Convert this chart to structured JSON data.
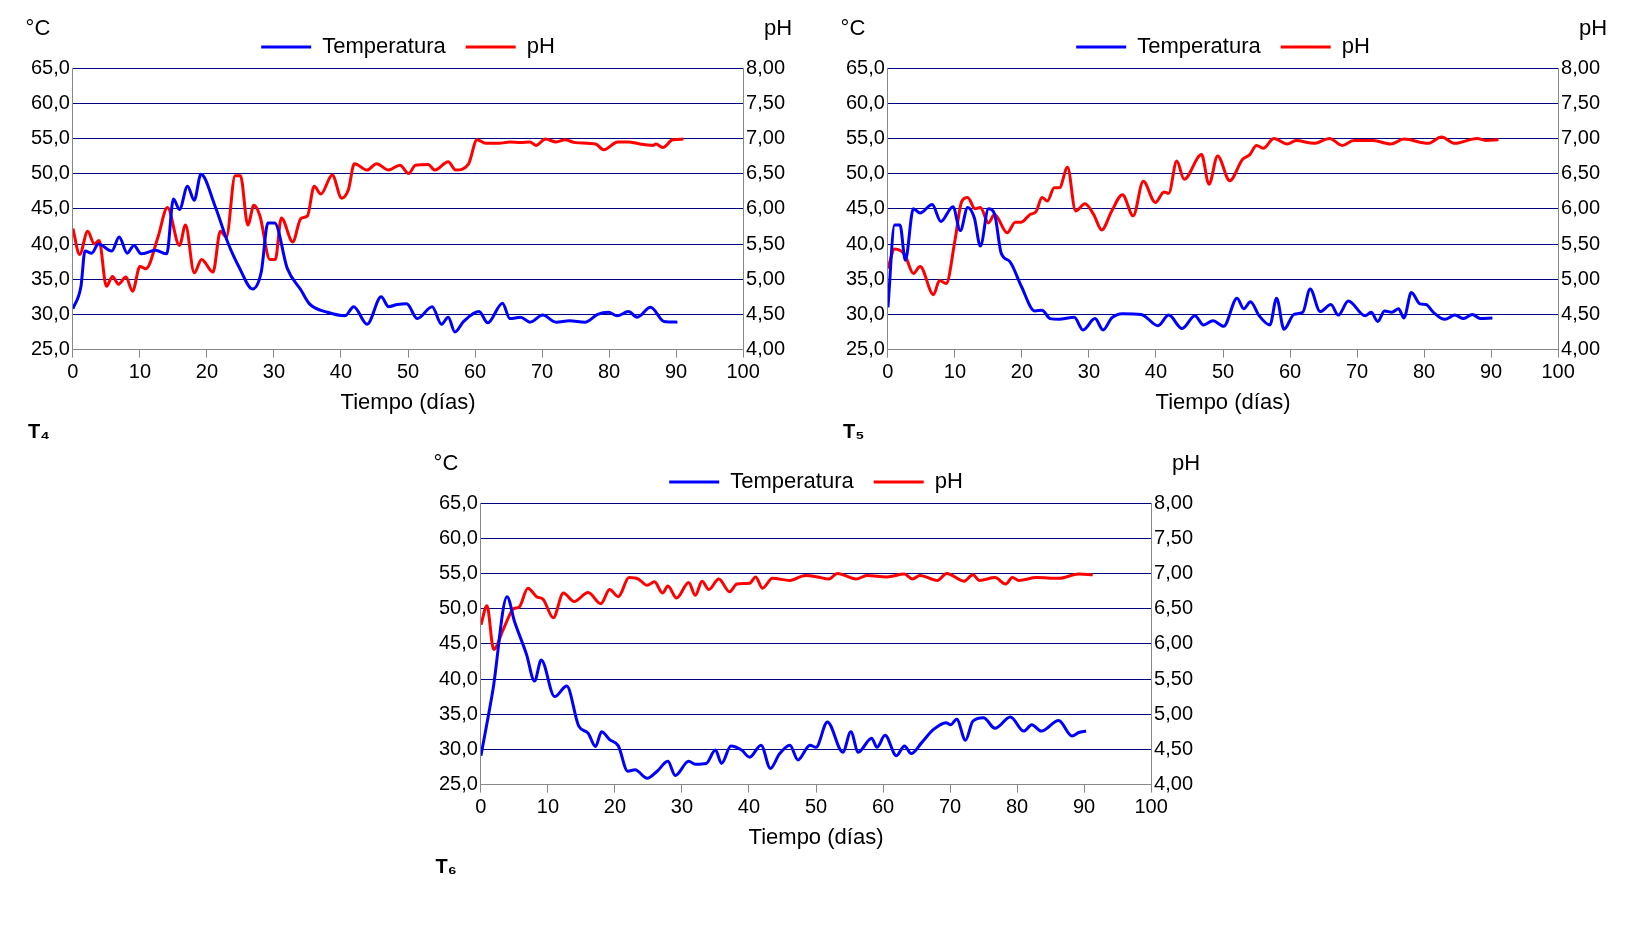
{
  "chart_data": [
    {
      "type": "line",
      "xlabel": "Tiempo (días)",
      "ylabel": "°C",
      "y2label": "pH",
      "annotations": [
        "T₄"
      ],
      "legend": "top",
      "grid": "y",
      "xlim": [
        0,
        100
      ],
      "xticks": [
        0,
        10,
        20,
        30,
        40,
        50,
        60,
        70,
        80,
        90,
        100
      ],
      "ylim": [
        25,
        65
      ],
      "yticks": [
        {
          "value": 25,
          "label": "25,0"
        },
        {
          "value": 30,
          "label": "30,0"
        },
        {
          "value": 35,
          "label": "35,0"
        },
        {
          "value": 40,
          "label": "40,0"
        },
        {
          "value": 45,
          "label": "45,0"
        },
        {
          "value": 50,
          "label": "50,0"
        },
        {
          "value": 55,
          "label": "55,0"
        },
        {
          "value": 60,
          "label": "60,0"
        },
        {
          "value": 65,
          "label": "65,0"
        }
      ],
      "y2lim": [
        4,
        8
      ],
      "y2ticks": [
        {
          "value": 4,
          "label": "4,00"
        },
        {
          "value": 4.5,
          "label": "4,50"
        },
        {
          "value": 5,
          "label": "5,00"
        },
        {
          "value": 5.5,
          "label": "5,50"
        },
        {
          "value": 6,
          "label": "6,00"
        },
        {
          "value": 6.5,
          "label": "6,50"
        },
        {
          "value": 7,
          "label": "7,00"
        },
        {
          "value": 7.5,
          "label": "7,50"
        },
        {
          "value": 8,
          "label": "8,00"
        }
      ],
      "series": [
        {
          "name": "Temperatura",
          "color": "#0000ff",
          "x": [
            0,
            1.2,
            1.8,
            2.8,
            3.8,
            5.8,
            6.9,
            8.1,
            9.1,
            10.2,
            12.3,
            14,
            15,
            15.9,
            17.1,
            18.1,
            19.1,
            21.2,
            23.2,
            24.8,
            26.8,
            28.1,
            29.1,
            30.1,
            32,
            34,
            35.3,
            38,
            40.6,
            41.9,
            43.9,
            46,
            47.1,
            48.4,
            49.8,
            51.4,
            53.6,
            55,
            56,
            57,
            58.3,
            60.6,
            61.9,
            64.1,
            65.2,
            66.8,
            68.2,
            70.1,
            72.1,
            74.1,
            76.4,
            78.3,
            79.9,
            81.2,
            82.9,
            84.2,
            86.2,
            88.2,
            90.2
          ],
          "values": [
            30.8,
            34,
            39,
            38.7,
            40,
            39,
            41,
            38.7,
            39.8,
            38.6,
            39.1,
            38.6,
            46.4,
            44.9,
            48.2,
            46.2,
            49.9,
            45.4,
            40,
            36.7,
            33.6,
            36,
            43,
            43,
            36.5,
            33.5,
            31.5,
            30.3,
            29.8,
            31.1,
            28.6,
            32.5,
            31.1,
            31.4,
            31.5,
            29.4,
            31.1,
            28.6,
            29.6,
            27.5,
            29,
            30.4,
            28.8,
            31.6,
            29.4,
            29.6,
            28.9,
            29.9,
            28.9,
            29.1,
            28.9,
            30,
            30.3,
            29.8,
            30.4,
            29.6,
            31,
            29,
            28.9
          ]
        },
        {
          "name": "pH",
          "color": "#ff0000",
          "axis": "y2",
          "x": [
            0,
            1,
            2.2,
            3.2,
            3.9,
            5,
            5.9,
            6.8,
            7.9,
            8.9,
            10,
            10.9,
            12.7,
            14.1,
            15.9,
            16.8,
            18.1,
            19.2,
            20.9,
            22,
            22.9,
            24.2,
            25,
            26.1,
            27,
            27.9,
            29.4,
            30.2,
            31.1,
            32.8,
            34,
            35,
            36,
            37,
            38.7,
            40.1,
            41.1,
            42,
            43.9,
            45.3,
            47.1,
            48.8,
            50.1,
            51.1,
            53,
            54,
            56,
            57.1,
            59,
            60.3,
            61.6,
            63.6,
            65.2,
            66.8,
            68.2,
            69.1,
            70.5,
            72.1,
            73.4,
            75,
            78,
            79.2,
            81.3,
            82.9,
            84.6,
            86.5,
            87,
            88,
            89.5,
            91.1
          ],
          "values": [
            5.72,
            5.35,
            5.68,
            5.5,
            5.55,
            4.9,
            5.04,
            4.93,
            5.03,
            4.83,
            5.18,
            5.15,
            5.6,
            6.02,
            5.48,
            5.77,
            5.09,
            5.28,
            5.1,
            5.68,
            5.6,
            6.47,
            6.47,
            5.77,
            6.05,
            5.9,
            5.28,
            5.28,
            5.87,
            5.53,
            5.86,
            5.9,
            6.32,
            6.21,
            6.48,
            6.15,
            6.27,
            6.64,
            6.55,
            6.64,
            6.55,
            6.62,
            6.5,
            6.62,
            6.63,
            6.55,
            6.67,
            6.55,
            6.63,
            6.98,
            6.93,
            6.93,
            6.95,
            6.94,
            6.95,
            6.9,
            6.99,
            6.95,
            6.98,
            6.94,
            6.92,
            6.84,
            6.95,
            6.95,
            6.92,
            6.9,
            6.92,
            6.87,
            6.98,
            6.99
          ]
        }
      ]
    },
    {
      "type": "line",
      "xlabel": "Tiempo (días)",
      "ylabel": "°C",
      "y2label": "pH",
      "annotations": [
        "T₅"
      ],
      "legend": "top",
      "grid": "y",
      "xlim": [
        0,
        100
      ],
      "xticks": [
        0,
        10,
        20,
        30,
        40,
        50,
        60,
        70,
        80,
        90,
        100
      ],
      "ylim": [
        25,
        65
      ],
      "yticks": [
        {
          "value": 25,
          "label": "25,0"
        },
        {
          "value": 30,
          "label": "30,0"
        },
        {
          "value": 35,
          "label": "35,0"
        },
        {
          "value": 40,
          "label": "40,0"
        },
        {
          "value": 45,
          "label": "45,0"
        },
        {
          "value": 50,
          "label": "50,0"
        },
        {
          "value": 55,
          "label": "55,0"
        },
        {
          "value": 60,
          "label": "60,0"
        },
        {
          "value": 65,
          "label": "65,0"
        }
      ],
      "y2lim": [
        4,
        8
      ],
      "y2ticks": [
        {
          "value": 4,
          "label": "4,00"
        },
        {
          "value": 4.5,
          "label": "4,50"
        },
        {
          "value": 5,
          "label": "5,00"
        },
        {
          "value": 5.5,
          "label": "5,50"
        },
        {
          "value": 6,
          "label": "6,00"
        },
        {
          "value": 6.5,
          "label": "6,50"
        },
        {
          "value": 7,
          "label": "7,00"
        },
        {
          "value": 7.5,
          "label": "7,50"
        },
        {
          "value": 8,
          "label": "8,00"
        }
      ],
      "series": [
        {
          "name": "Temperatura",
          "color": "#0000ff",
          "x": [
            0,
            1,
            1.8,
            2.6,
            3.8,
            4.8,
            6.6,
            7.9,
            9.7,
            10.8,
            11.9,
            12.9,
            13.8,
            15,
            15.9,
            16.9,
            18.2,
            19.9,
            21.9,
            23,
            24.2,
            25.5,
            27.8,
            29.1,
            30.9,
            32.1,
            33.4,
            35,
            37.8,
            40.3,
            41.9,
            43.9,
            45.8,
            47.1,
            48.5,
            50.1,
            52.1,
            53.1,
            54.1,
            55.4,
            57,
            58,
            59.1,
            60.6,
            61.9,
            63,
            64.5,
            66.1,
            67.2,
            68.7,
            71.2,
            72.1,
            73.1,
            74.1,
            75.2,
            76.2,
            77,
            78.1,
            79.4,
            80.3,
            81.4,
            83.1,
            84.6,
            85.9,
            87.2,
            88.4,
            90.2
          ],
          "values": [
            31,
            42.7,
            42.7,
            37.7,
            45,
            44.4,
            45.6,
            43.2,
            45.3,
            41.9,
            45.2,
            43.7,
            39.7,
            45,
            44.3,
            38.7,
            37.5,
            34,
            30.5,
            30.6,
            29.4,
            29.3,
            29.6,
            27.8,
            29.4,
            27.8,
            29.5,
            30.1,
            30,
            28.4,
            29.9,
            28,
            29.8,
            28.5,
            29.1,
            28.3,
            32.3,
            30.8,
            31.8,
            29.8,
            28.5,
            32.3,
            27.9,
            30,
            30.3,
            33.6,
            30.4,
            31.4,
            29.9,
            31.9,
            29.8,
            30.3,
            29,
            30.5,
            30.3,
            30.8,
            29.5,
            33.1,
            31.5,
            31.4,
            30.3,
            29.3,
            29.9,
            29.4,
            30,
            29.4,
            29.5
          ]
        },
        {
          "name": "pH",
          "color": "#ff0000",
          "axis": "y2",
          "x": [
            0,
            1,
            2.5,
            3.8,
            4.8,
            6.8,
            7.7,
            8.7,
            10,
            11,
            11.9,
            13,
            13.8,
            15,
            15.9,
            17.8,
            19,
            19.9,
            21.2,
            22.1,
            23,
            23.8,
            24.8,
            25.6,
            26.8,
            28,
            29.4,
            30.7,
            31.9,
            33.4,
            35,
            36.6,
            38.1,
            39.9,
            41.2,
            41.9,
            43.1,
            44.2,
            46.8,
            47.9,
            49.2,
            51,
            52.9,
            54,
            55,
            56,
            57.6,
            59.6,
            60.9,
            63.6,
            65.9,
            67.8,
            69.5,
            72.4,
            75,
            77,
            80.6,
            82.6,
            84.6,
            87.9,
            89.2,
            91.1
          ],
          "values": [
            5.15,
            5.43,
            5.35,
            5.08,
            5.18,
            4.78,
            4.98,
            4.94,
            5.55,
            6.1,
            6.16,
            6,
            6.02,
            5.8,
            5.92,
            5.66,
            5.81,
            5.81,
            5.92,
            5.96,
            6.16,
            6.11,
            6.3,
            6.3,
            6.59,
            5.97,
            6.07,
            5.92,
            5.7,
            5.97,
            6.2,
            5.9,
            6.39,
            6.09,
            6.24,
            6.22,
            6.68,
            6.42,
            6.77,
            6.35,
            6.75,
            6.4,
            6.7,
            6.77,
            6.9,
            6.86,
            7,
            6.92,
            6.97,
            6.93,
            7,
            6.9,
            6.97,
            6.97,
            6.92,
            6.99,
            6.93,
            7.02,
            6.93,
            7,
            6.97,
            6.98
          ]
        }
      ]
    },
    {
      "type": "line",
      "xlabel": "Tiempo (días)",
      "ylabel": "°C",
      "y2label": "pH",
      "annotations": [
        "T₆"
      ],
      "legend": "top",
      "grid": "y",
      "xlim": [
        0,
        100
      ],
      "xticks": [
        0,
        10,
        20,
        30,
        40,
        50,
        60,
        70,
        80,
        90,
        100
      ],
      "ylim": [
        25,
        65
      ],
      "yticks": [
        {
          "value": 25,
          "label": "25,0"
        },
        {
          "value": 30,
          "label": "30,0"
        },
        {
          "value": 35,
          "label": "35,0"
        },
        {
          "value": 40,
          "label": "40,0"
        },
        {
          "value": 45,
          "label": "45,0"
        },
        {
          "value": 50,
          "label": "50,0"
        },
        {
          "value": 55,
          "label": "55,0"
        },
        {
          "value": 60,
          "label": "60,0"
        },
        {
          "value": 65,
          "label": "65,0"
        }
      ],
      "y2lim": [
        4,
        8
      ],
      "y2ticks": [
        {
          "value": 4,
          "label": "4,00"
        },
        {
          "value": 4.5,
          "label": "4,50"
        },
        {
          "value": 5,
          "label": "5,00"
        },
        {
          "value": 5.5,
          "label": "5,50"
        },
        {
          "value": 6,
          "label": "6,00"
        },
        {
          "value": 6.5,
          "label": "6,50"
        },
        {
          "value": 7,
          "label": "7,00"
        },
        {
          "value": 7.5,
          "label": "7,50"
        },
        {
          "value": 8,
          "label": "8,00"
        }
      ],
      "series": [
        {
          "name": "Temperatura",
          "color": "#0000ff",
          "x": [
            0,
            1.8,
            3.9,
            5,
            6.8,
            8,
            9,
            11,
            12.8,
            14.6,
            16,
            17.1,
            18,
            19.2,
            20.5,
            21.9,
            23,
            24.8,
            26.3,
            27.9,
            29,
            31,
            32,
            33.6,
            35,
            35.9,
            37.3,
            38.9,
            40.1,
            41.8,
            43.2,
            44.5,
            46.1,
            47.3,
            49.1,
            50,
            51.7,
            54,
            55.2,
            56.3,
            58.3,
            59.1,
            60.3,
            62,
            63.2,
            64.2,
            65.8,
            67.5,
            69.4,
            70.1,
            71,
            72.3,
            73.4,
            75,
            76.7,
            79,
            81,
            82.2,
            83.6,
            86.2,
            88.2,
            89.2,
            90.3
          ],
          "values": [
            29.1,
            38.5,
            51.7,
            48.2,
            43.5,
            39.7,
            42.7,
            37.5,
            39,
            33.3,
            32.3,
            30.4,
            32.5,
            31.4,
            30.5,
            26.9,
            27.1,
            25.9,
            26.9,
            28.3,
            26.3,
            28.3,
            27.9,
            28,
            29.9,
            28,
            30.5,
            29.9,
            28.9,
            30.6,
            27.3,
            29.3,
            30.6,
            28.5,
            30.6,
            30.3,
            33.9,
            29.6,
            32.5,
            29.6,
            31.6,
            30.3,
            32,
            29.1,
            30.5,
            29.4,
            31,
            32.8,
            33.8,
            33.5,
            34.3,
            31.3,
            34,
            34.5,
            33,
            34.6,
            32.6,
            33.5,
            32.6,
            34.1,
            31.9,
            32.4,
            32.6
          ]
        },
        {
          "name": "pH",
          "color": "#ff0000",
          "axis": "y2",
          "x": [
            0,
            0.9,
            1.9,
            3.4,
            4.9,
            5.7,
            7,
            8.3,
            9.3,
            10.8,
            12.3,
            13.9,
            16,
            17.9,
            19.2,
            20.5,
            22.1,
            23.5,
            24.8,
            25.9,
            27.1,
            27.9,
            29.2,
            31,
            32,
            33,
            34,
            35.5,
            37.1,
            38.2,
            40.1,
            41,
            42,
            43.5,
            46.1,
            48.4,
            50.2,
            51.9,
            53.2,
            56,
            57.6,
            60.6,
            63.2,
            64.4,
            65.5,
            68.1,
            69.5,
            72.1,
            73.4,
            74.4,
            76.7,
            78.3,
            79.3,
            80.3,
            82.9,
            86.2,
            89.2,
            91.3
          ],
          "values": [
            6.27,
            6.54,
            5.92,
            6.22,
            6.5,
            6.52,
            6.79,
            6.67,
            6.63,
            6.37,
            6.72,
            6.6,
            6.73,
            6.57,
            6.77,
            6.67,
            6.94,
            6.92,
            6.83,
            6.88,
            6.72,
            6.82,
            6.65,
            6.87,
            6.69,
            6.89,
            6.77,
            6.92,
            6.74,
            6.85,
            6.86,
            6.95,
            6.79,
            6.93,
            6.9,
            6.97,
            6.95,
            6.92,
            7,
            6.92,
            6.97,
            6.95,
            6.99,
            6.92,
            6.97,
            6.9,
            7,
            6.89,
            6.98,
            6.9,
            6.94,
            6.85,
            6.94,
            6.9,
            6.94,
            6.93,
            6.99,
            6.98
          ]
        }
      ]
    }
  ]
}
